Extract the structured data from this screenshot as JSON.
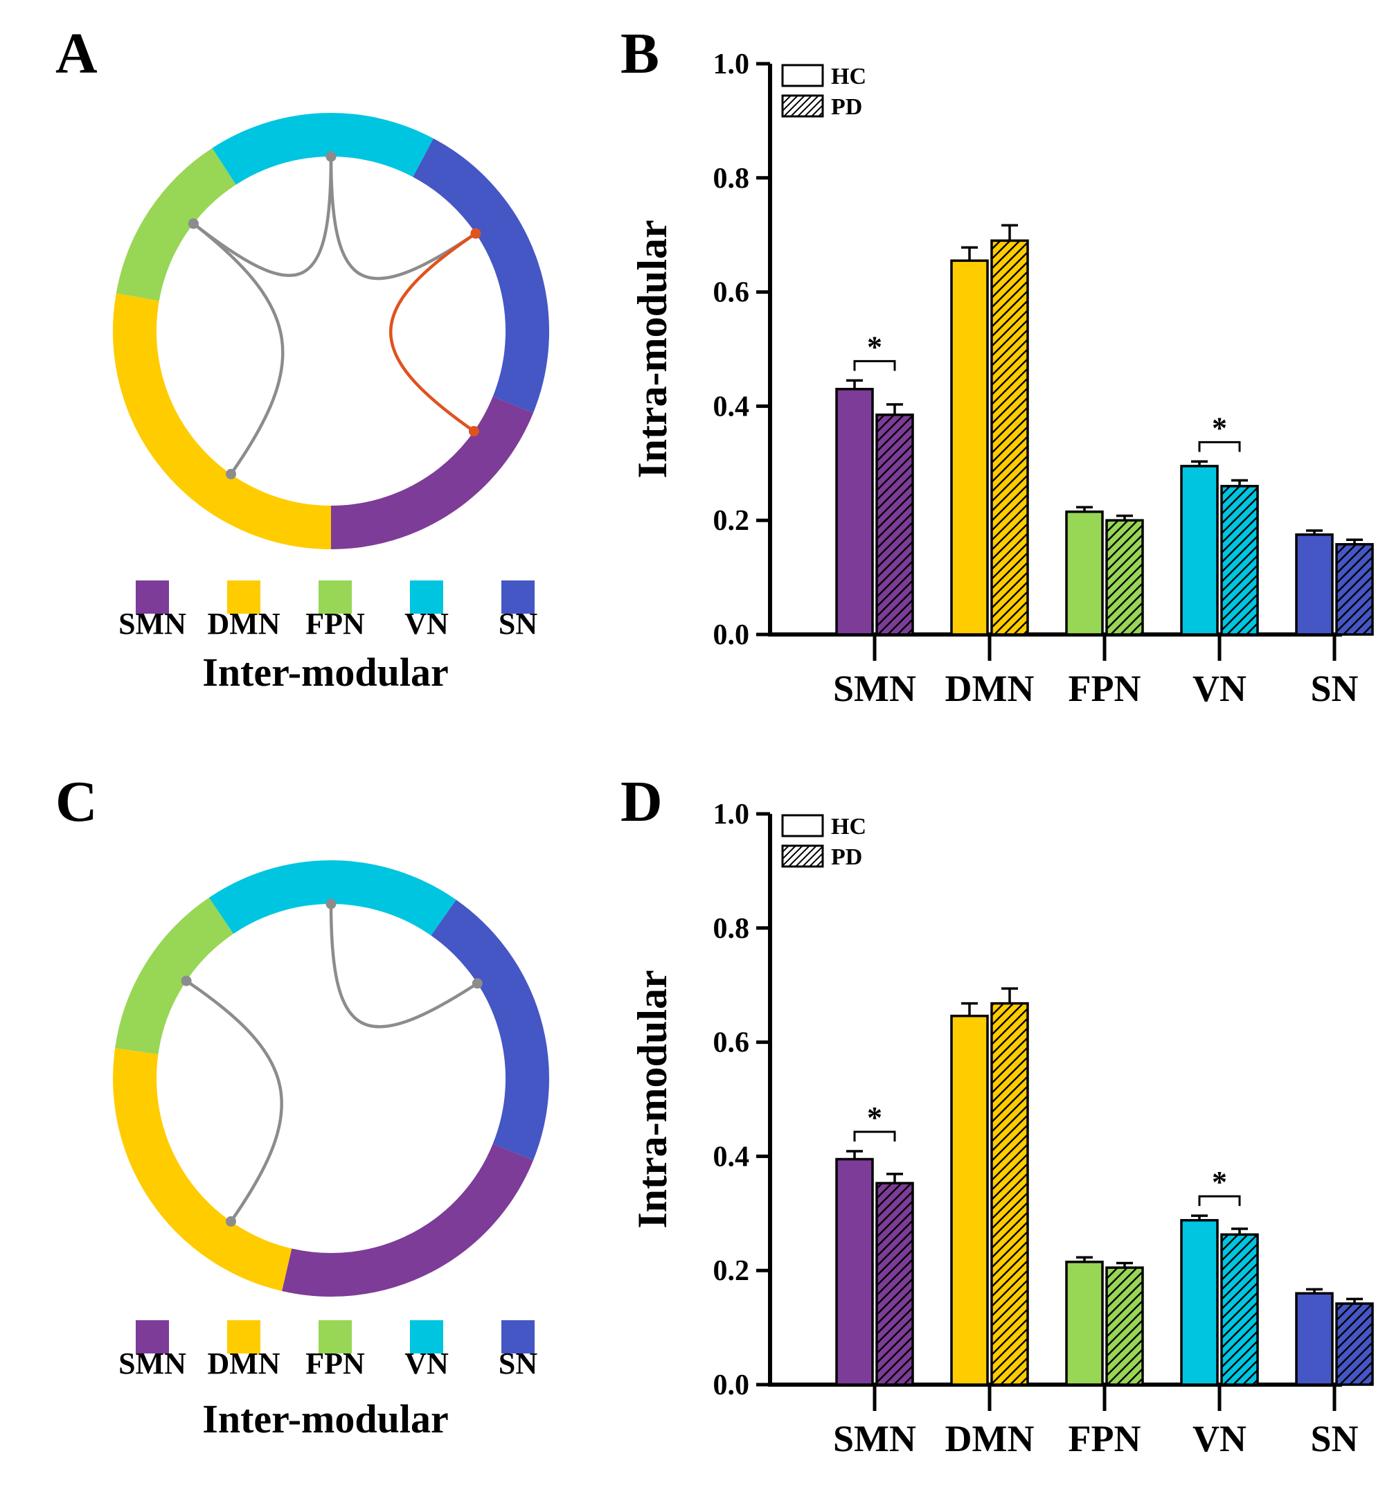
{
  "panels": [
    {
      "letter": "A",
      "kind": "chord",
      "caption": "Inter-modular",
      "ring_segments": [
        {
          "module": "SMN",
          "from_deg": 112,
          "to_deg": 180
        },
        {
          "module": "DMN",
          "from_deg": 180,
          "to_deg": 280
        },
        {
          "module": "FPN",
          "from_deg": 280,
          "to_deg": 327
        },
        {
          "module": "VN",
          "from_deg": 327,
          "to_deg": 28
        },
        {
          "module": "SN",
          "from_deg": 28,
          "to_deg": 112
        }
      ],
      "connections": [
        {
          "from": "VN",
          "to": "FPN",
          "from_deg": 0,
          "to_deg": 308,
          "color": "#8c8c8c"
        },
        {
          "from": "VN",
          "to": "SN",
          "from_deg": 0,
          "to_deg": 56,
          "color": "#8c8c8c"
        },
        {
          "from": "FPN",
          "to": "DMN",
          "from_deg": 308,
          "to_deg": 215,
          "color": "#8c8c8c"
        },
        {
          "from": "SN",
          "to": "SMN",
          "from_deg": 56,
          "to_deg": 125,
          "color": "#e0521e"
        }
      ]
    },
    {
      "letter": "C",
      "kind": "chord",
      "caption": "Inter-modular",
      "ring_segments": [
        {
          "module": "SMN",
          "from_deg": 112,
          "to_deg": 193
        },
        {
          "module": "DMN",
          "from_deg": 193,
          "to_deg": 278
        },
        {
          "module": "FPN",
          "from_deg": 278,
          "to_deg": 326
        },
        {
          "module": "VN",
          "from_deg": 326,
          "to_deg": 35
        },
        {
          "module": "SN",
          "from_deg": 35,
          "to_deg": 112
        }
      ],
      "connections": [
        {
          "from": "VN",
          "to": "SN",
          "from_deg": 0,
          "to_deg": 57,
          "color": "#8c8c8c"
        },
        {
          "from": "FPN",
          "to": "DMN",
          "from_deg": 304,
          "to_deg": 215,
          "color": "#8c8c8c"
        }
      ]
    },
    {
      "letter": "B",
      "kind": "bar"
    },
    {
      "letter": "D",
      "kind": "bar"
    }
  ],
  "modules": [
    {
      "name": "SMN",
      "color": "#7d3c98"
    },
    {
      "name": "DMN",
      "color": "#ffcc00"
    },
    {
      "name": "FPN",
      "color": "#98d655"
    },
    {
      "name": "VN",
      "color": "#00c5e0"
    },
    {
      "name": "SN",
      "color": "#4556c5"
    }
  ],
  "chart_data": [
    {
      "type": "bar",
      "panel": "B",
      "categories": [
        "SMN",
        "DMN",
        "FPN",
        "VN",
        "SN"
      ],
      "series": [
        {
          "name": "HC",
          "pattern": "solid",
          "values": [
            0.43,
            0.655,
            0.215,
            0.295,
            0.175
          ],
          "errors": [
            0.015,
            0.023,
            0.008,
            0.008,
            0.007
          ]
        },
        {
          "name": "PD",
          "pattern": "hatched",
          "values": [
            0.385,
            0.69,
            0.2,
            0.26,
            0.158
          ],
          "errors": [
            0.018,
            0.027,
            0.008,
            0.01,
            0.008
          ]
        }
      ],
      "title": "",
      "xlabel": "",
      "ylabel": "Intra-modular",
      "ylim": [
        0,
        1.0
      ],
      "yticks": [
        "0.0",
        "0.2",
        "0.4",
        "0.6",
        "0.8",
        "1.0"
      ],
      "legend": [
        "HC",
        "PD"
      ],
      "legend_position": "top-left",
      "significance": [
        {
          "category": "SMN",
          "label": "*"
        },
        {
          "category": "VN",
          "label": "*"
        }
      ]
    },
    {
      "type": "bar",
      "panel": "D",
      "categories": [
        "SMN",
        "DMN",
        "FPN",
        "VN",
        "SN"
      ],
      "series": [
        {
          "name": "HC",
          "pattern": "solid",
          "values": [
            0.395,
            0.646,
            0.215,
            0.288,
            0.16
          ],
          "errors": [
            0.014,
            0.022,
            0.008,
            0.008,
            0.007
          ]
        },
        {
          "name": "PD",
          "pattern": "hatched",
          "values": [
            0.353,
            0.668,
            0.205,
            0.263,
            0.142
          ],
          "errors": [
            0.016,
            0.026,
            0.008,
            0.01,
            0.008
          ]
        }
      ],
      "title": "",
      "xlabel": "",
      "ylabel": "Intra-modular",
      "ylim": [
        0,
        1.0
      ],
      "yticks": [
        "0.0",
        "0.2",
        "0.4",
        "0.6",
        "0.8",
        "1.0"
      ],
      "legend": [
        "HC",
        "PD"
      ],
      "legend_position": "top-left",
      "significance": [
        {
          "category": "SMN",
          "label": "*"
        },
        {
          "category": "VN",
          "label": "*"
        }
      ]
    }
  ]
}
